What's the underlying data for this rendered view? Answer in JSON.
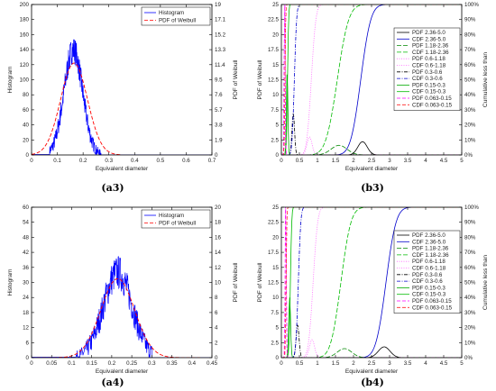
{
  "chart_data": [
    {
      "id": "a3",
      "type": "line",
      "caption": "(a3)",
      "xlabel": "Equivalent diameter",
      "ylabel": "Histogram",
      "y2label": "PDF of Weibull",
      "xlim": [
        0,
        0.7
      ],
      "ylim": [
        0,
        200
      ],
      "y2lim": [
        0,
        19
      ],
      "xticks": [
        "0",
        "0.1",
        "0.2",
        "0.3",
        "0.4",
        "0.5",
        "0.6",
        "0.7"
      ],
      "yticks": [
        "0",
        "20",
        "40",
        "60",
        "80",
        "100",
        "120",
        "140",
        "160",
        "180",
        "200"
      ],
      "y2ticks": [
        "0",
        "1.9",
        "3.8",
        "5.7",
        "7.6",
        "9.5",
        "11.4",
        "13.3",
        "15.2",
        "17.1",
        "19"
      ],
      "legend": [
        "Histogram",
        "PDF of Weibull"
      ],
      "histogram": {
        "name": "Histogram",
        "color": "#0000ff",
        "center": 0.162,
        "sigma": 0.036,
        "peak": 140,
        "noise": 18,
        "x_start": 0.07,
        "x_end": 0.27
      },
      "pdf": {
        "name": "PDF of Weibull",
        "color": "#ff0000",
        "center": 0.165,
        "sigma": 0.052,
        "peak": 11.6,
        "x_start": 0.0,
        "x_end": 0.35
      }
    },
    {
      "id": "b3",
      "type": "line",
      "caption": "(b3)",
      "xlabel": "Equivalent diameter",
      "ylabel": "PDF of Weibull",
      "y2label": "Cumulative less than",
      "xlim": [
        0,
        5
      ],
      "ylim": [
        0,
        25
      ],
      "y2lim": [
        0,
        100
      ],
      "xticks": [
        "0",
        "0.5",
        "1",
        "1.5",
        "2",
        "2.5",
        "3",
        "3.5",
        "4",
        "4.5",
        "5"
      ],
      "yticks": [
        "0",
        "2.5",
        "5",
        "7.5",
        "10",
        "12.5",
        "15",
        "17.5",
        "20",
        "22.5",
        "25"
      ],
      "y2ticks": [
        "0%",
        "10%",
        "20%",
        "30%",
        "40%",
        "50%",
        "60%",
        "70%",
        "80%",
        "90%",
        "100%"
      ],
      "series": [
        {
          "name": "PDF 2.36-5.0",
          "kind": "pdf",
          "color": "#000000",
          "dash": "",
          "mu": 2.25,
          "sigma": 0.13,
          "peak": 2.2
        },
        {
          "name": "CDF 2.36-5.0",
          "kind": "cdf",
          "color": "#0000cc",
          "dash": "",
          "mu": 2.2,
          "sigma": 0.22
        },
        {
          "name": "PDF 1.18-2.36",
          "kind": "pdf",
          "color": "#008800",
          "dash": "5,2",
          "mu": 1.6,
          "sigma": 0.22,
          "peak": 1.6
        },
        {
          "name": "CDF 1.18-2.36",
          "kind": "cdf",
          "color": "#00bb00",
          "dash": "5,2",
          "mu": 1.55,
          "sigma": 0.25
        },
        {
          "name": "PDF 0.6-1.18",
          "kind": "pdf",
          "color": "#ff66ff",
          "dash": "1,1.5",
          "mu": 0.78,
          "sigma": 0.07,
          "peak": 3.0
        },
        {
          "name": "CDF 0.6-1.18",
          "kind": "cdf",
          "color": "#ff66ff",
          "dash": "1,1.5",
          "mu": 0.83,
          "sigma": 0.1
        },
        {
          "name": "PDF 0.3-0.6",
          "kind": "pdf",
          "color": "#000000",
          "dash": "4,1.5,1,1.5",
          "mu": 0.33,
          "sigma": 0.035,
          "peak": 7.0
        },
        {
          "name": "CDF 0.3-0.6",
          "kind": "cdf",
          "color": "#0000cc",
          "dash": "4,1.5,1,1.5",
          "mu": 0.36,
          "sigma": 0.05
        },
        {
          "name": "PDF 0.15-0.3",
          "kind": "pdf",
          "color": "#00aa00",
          "dash": "",
          "mu": 0.16,
          "sigma": 0.02,
          "peak": 14
        },
        {
          "name": "CDF 0.15-0.3",
          "kind": "cdf",
          "color": "#00bb00",
          "dash": "",
          "mu": 0.17,
          "sigma": 0.025
        },
        {
          "name": "PDF 0.063-0.15",
          "kind": "pdf",
          "color": "#ff00ff",
          "dash": "4,2",
          "mu": 0.09,
          "sigma": 0.012,
          "peak": 30
        },
        {
          "name": "CDF 0.063-0.15",
          "kind": "cdf",
          "color": "#ff2222",
          "dash": "4,2",
          "mu": 0.1,
          "sigma": 0.015
        }
      ]
    },
    {
      "id": "a4",
      "type": "line",
      "caption": "(a4)",
      "xlabel": "Equivalent diameter",
      "ylabel": "Histogram",
      "y2label": "PDF of Weibull",
      "xlim": [
        0,
        0.45
      ],
      "ylim": [
        0,
        60
      ],
      "y2lim": [
        0,
        20
      ],
      "xticks": [
        "0",
        "0.05",
        "0.1",
        "0.15",
        "0.2",
        "0.25",
        "0.3",
        "0.35",
        "0.4",
        "0.45"
      ],
      "yticks": [
        "0",
        "6",
        "12",
        "18",
        "24",
        "30",
        "36",
        "42",
        "48",
        "54",
        "60"
      ],
      "y2ticks": [
        "0",
        "2",
        "4",
        "6",
        "8",
        "10",
        "12",
        "14",
        "16",
        "18",
        "20"
      ],
      "legend": [
        "Histogram",
        "PDF of Weibull"
      ],
      "histogram": {
        "name": "Histogram",
        "color": "#0000ff",
        "center": 0.215,
        "sigma": 0.036,
        "peak": 34,
        "noise": 7,
        "x_start": 0.11,
        "x_end": 0.3
      },
      "pdf": {
        "name": "PDF of Weibull",
        "color": "#ff0000",
        "center": 0.215,
        "sigma": 0.042,
        "peak": 10.5,
        "x_start": 0.0,
        "x_end": 0.42
      }
    },
    {
      "id": "b4",
      "type": "line",
      "caption": "(b4)",
      "xlabel": "Equivalent diameter",
      "ylabel": "PDF of Weibull",
      "y2label": "Cumulative less than",
      "xlim": [
        0,
        5
      ],
      "ylim": [
        0,
        25
      ],
      "y2lim": [
        0,
        100
      ],
      "xticks": [
        "0",
        "0.5",
        "1",
        "1.5",
        "2",
        "2.5",
        "3",
        "3.5",
        "4",
        "4.5",
        "5"
      ],
      "yticks": [
        "0",
        "2.5",
        "5",
        "7.5",
        "10",
        "12.5",
        "15",
        "17.5",
        "20",
        "22.5",
        "25"
      ],
      "y2ticks": [
        "0%",
        "10%",
        "20%",
        "30%",
        "40%",
        "50%",
        "60%",
        "70%",
        "80%",
        "90%",
        "100%"
      ],
      "series": [
        {
          "name": "PDF 2.36-5.0",
          "kind": "pdf",
          "color": "#000000",
          "dash": "",
          "mu": 2.85,
          "sigma": 0.16,
          "peak": 1.8
        },
        {
          "name": "CDF 2.36-5.0",
          "kind": "cdf",
          "color": "#0000cc",
          "dash": "",
          "mu": 2.9,
          "sigma": 0.22
        },
        {
          "name": "PDF 1.18-2.36",
          "kind": "pdf",
          "color": "#008800",
          "dash": "5,2",
          "mu": 1.75,
          "sigma": 0.2,
          "peak": 1.5
        },
        {
          "name": "CDF 1.18-2.36",
          "kind": "cdf",
          "color": "#00bb00",
          "dash": "5,2",
          "mu": 1.65,
          "sigma": 0.22
        },
        {
          "name": "PDF 0.6-1.18",
          "kind": "pdf",
          "color": "#ff66ff",
          "dash": "1,1.5",
          "mu": 0.85,
          "sigma": 0.07,
          "peak": 3.0
        },
        {
          "name": "CDF 0.6-1.18",
          "kind": "cdf",
          "color": "#ff66ff",
          "dash": "1,1.5",
          "mu": 0.88,
          "sigma": 0.1
        },
        {
          "name": "PDF 0.3-0.6",
          "kind": "pdf",
          "color": "#000000",
          "dash": "4,1.5,1,1.5",
          "mu": 0.45,
          "sigma": 0.04,
          "peak": 5.5
        },
        {
          "name": "CDF 0.3-0.6",
          "kind": "cdf",
          "color": "#0000cc",
          "dash": "4,1.5,1,1.5",
          "mu": 0.47,
          "sigma": 0.055
        },
        {
          "name": "PDF 0.15-0.3",
          "kind": "pdf",
          "color": "#00aa00",
          "dash": "",
          "mu": 0.23,
          "sigma": 0.025,
          "peak": 10
        },
        {
          "name": "CDF 0.15-0.3",
          "kind": "cdf",
          "color": "#00bb00",
          "dash": "",
          "mu": 0.25,
          "sigma": 0.03
        },
        {
          "name": "PDF 0.063-0.15",
          "kind": "pdf",
          "color": "#ff00ff",
          "dash": "4,2",
          "mu": 0.12,
          "sigma": 0.014,
          "peak": 28
        },
        {
          "name": "CDF 0.063-0.15",
          "kind": "cdf",
          "color": "#ff2222",
          "dash": "4,2",
          "mu": 0.13,
          "sigma": 0.017
        }
      ]
    }
  ]
}
